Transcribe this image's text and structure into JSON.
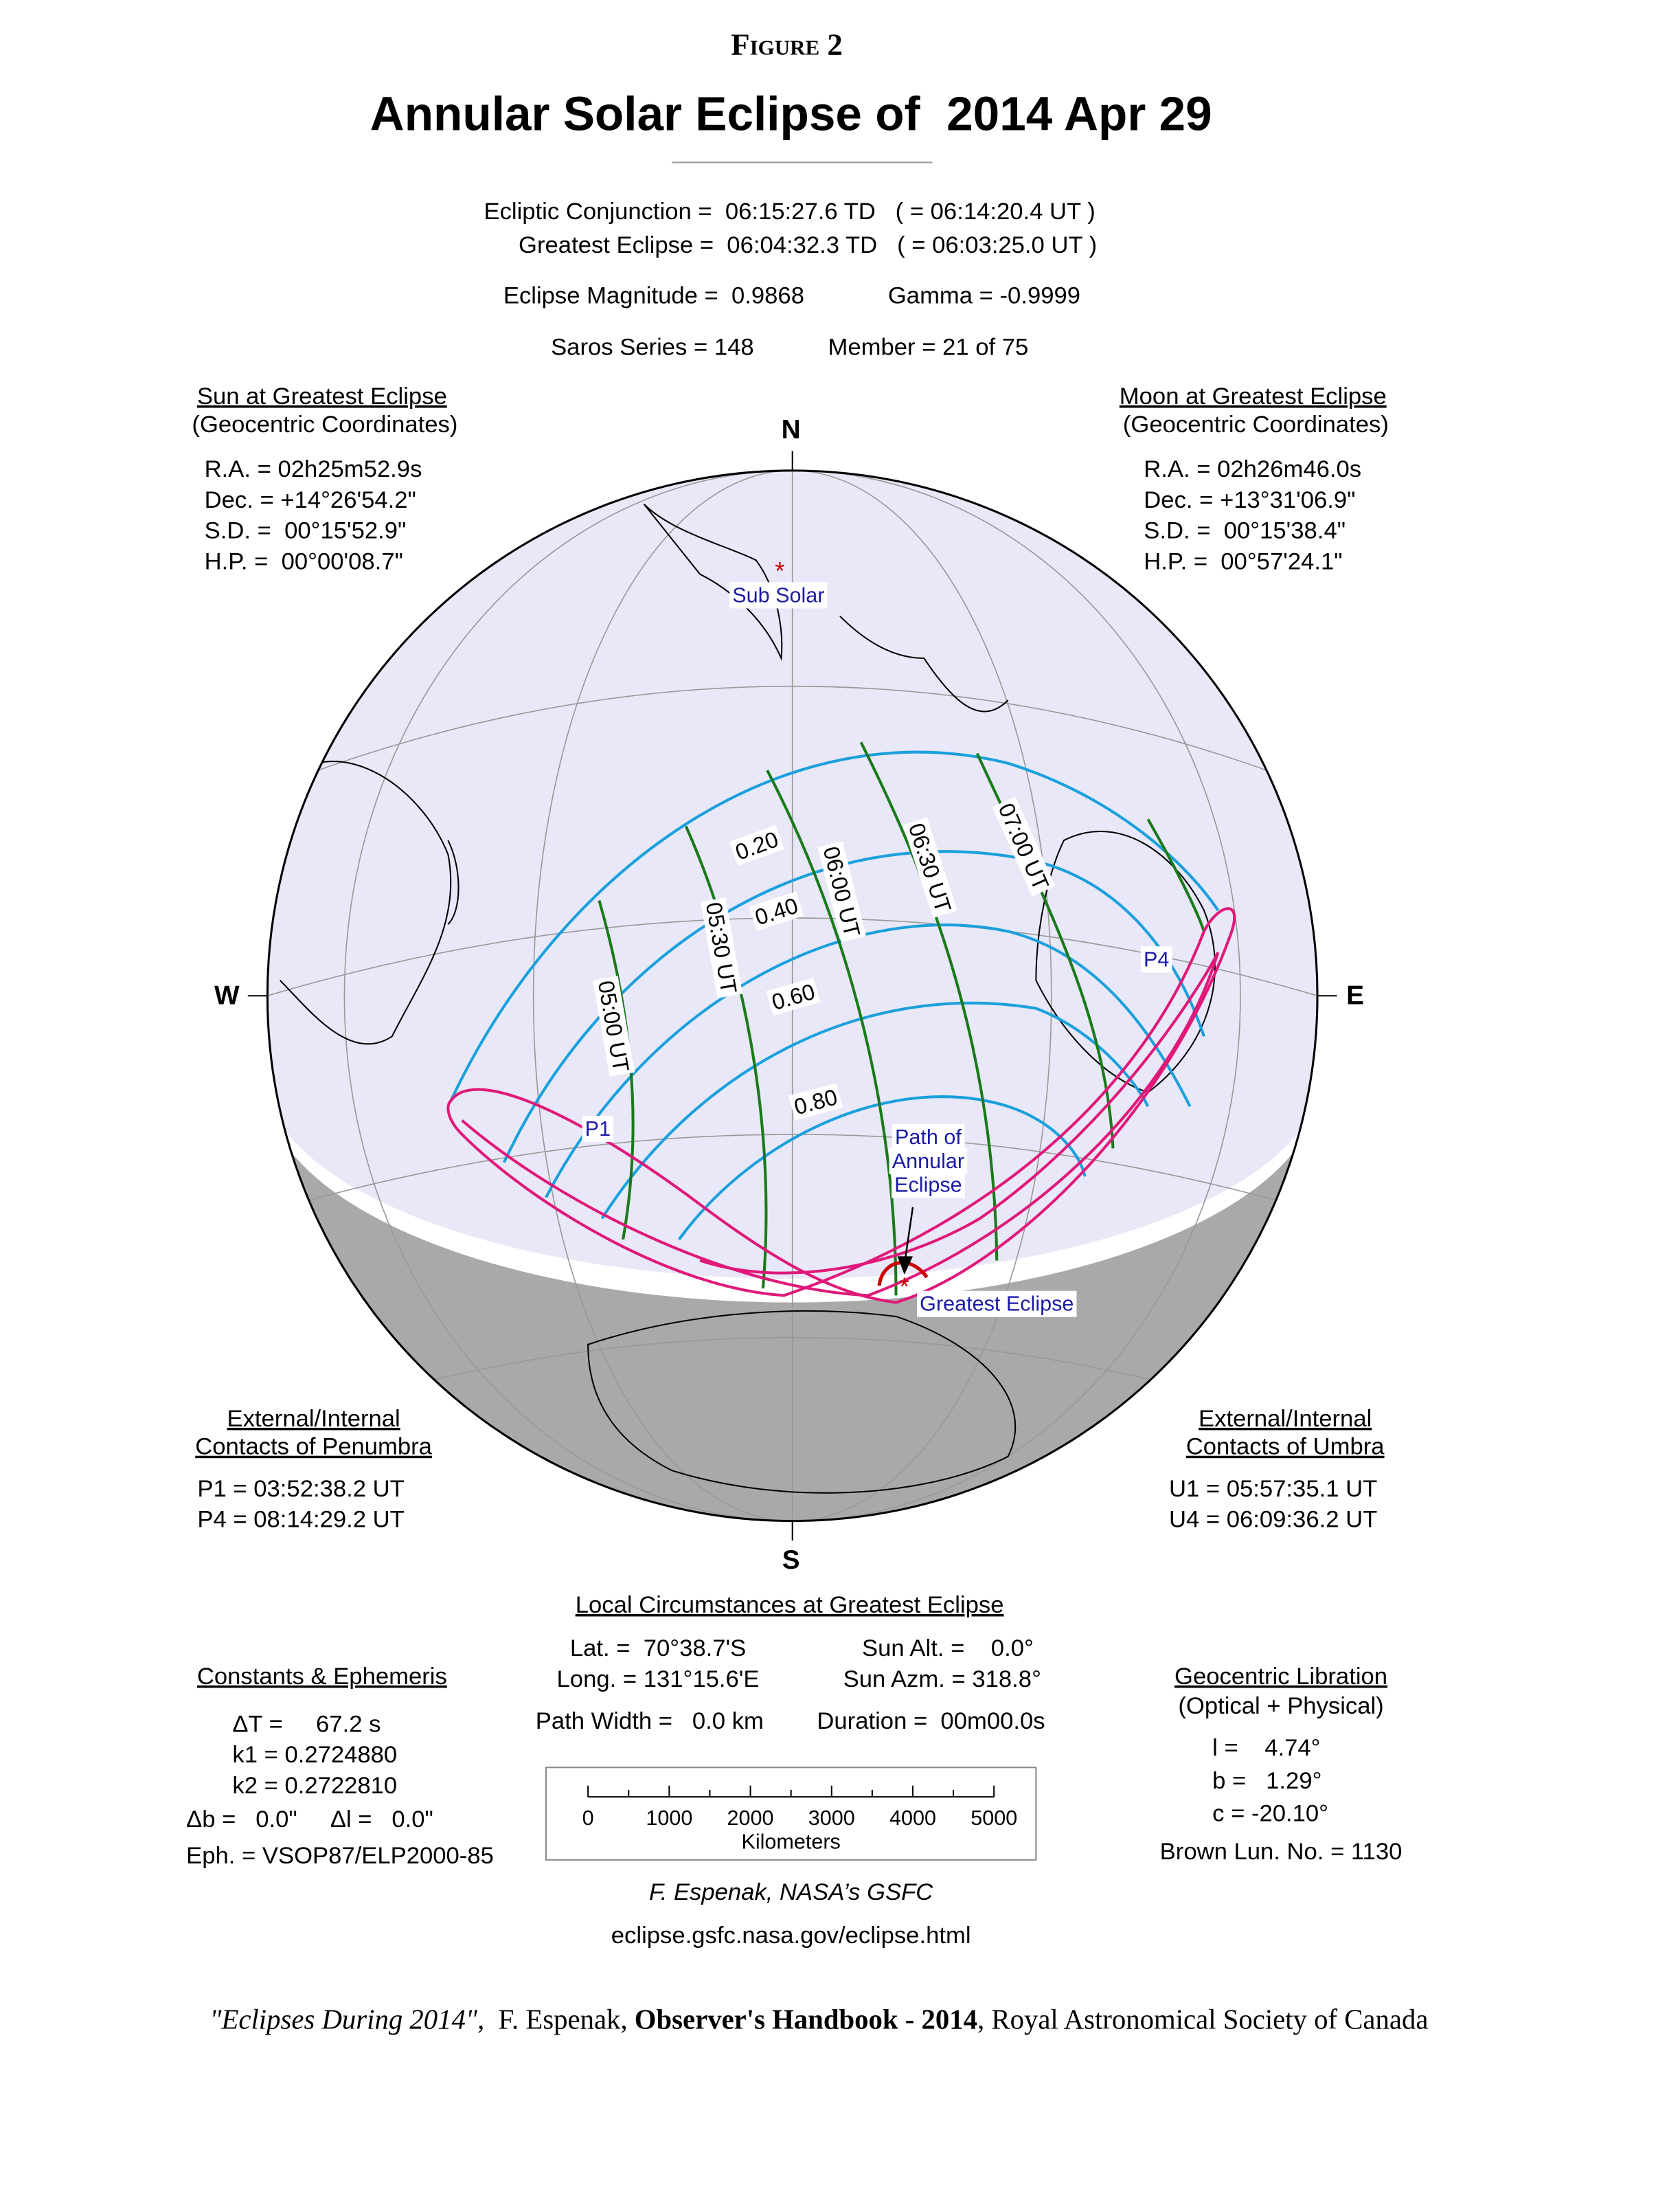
{
  "header": {
    "figure": "Figure 2",
    "title": "Annular Solar Eclipse of  2014 Apr 29"
  },
  "summary": [
    [
      "Ecliptic Conjunction =  06:15:27.6 TD   ( = 06:14:20.4 UT )"
    ],
    [
      "Greatest Eclipse =  06:04:32.3 TD   ( = 06:03:25.0 UT )"
    ],
    [
      "Eclipse Magnitude =  0.9868",
      "Gamma = -0.9999"
    ],
    [
      "Saros Series = 148",
      "Member = 21 of 75"
    ]
  ],
  "sun": {
    "title": "Sun at Greatest Eclipse",
    "subtitle": "(Geocentric Coordinates)",
    "lines": [
      "R.A. = 02h25m52.9s",
      "Dec. = +14°26'54.2\"",
      "S.D. =  00°15'52.9\"",
      "H.P. =  00°00'08.7\""
    ]
  },
  "moon": {
    "title": "Moon at Greatest Eclipse",
    "subtitle": "(Geocentric Coordinates)",
    "lines": [
      "R.A. = 02h26m46.0s",
      "Dec. = +13°31'06.9\"",
      "S.D. =  00°15'38.4\"",
      "H.P. =  00°57'24.1\""
    ]
  },
  "penumbra": {
    "title": [
      "External/Internal",
      "Contacts of Penumbra"
    ],
    "lines": [
      "P1 = 03:52:38.2 UT",
      "P4 = 08:14:29.2 UT"
    ]
  },
  "umbra": {
    "title": [
      "External/Internal",
      "Contacts of Umbra"
    ],
    "lines": [
      "U1 = 05:57:35.1 UT",
      "U4 = 06:09:36.2 UT"
    ]
  },
  "map": {
    "compass": {
      "north": "N",
      "south": "S",
      "west": "W",
      "east": "E"
    },
    "sub_solar": "Sub Solar",
    "greatest_eclipse": "Greatest Eclipse",
    "p1": "P1",
    "p4": "P4",
    "path_label": [
      "Path of",
      "Annular",
      "Eclipse"
    ],
    "times": [
      "05:00 UT",
      "05:30 UT",
      "06:00 UT",
      "06:30 UT",
      "07:00 UT"
    ],
    "magnitudes": [
      "0.20",
      "0.40",
      "0.60",
      "0.80"
    ]
  },
  "local": {
    "title": "Local Circumstances at Greatest Eclipse",
    "rows": [
      [
        "Lat. =  70°38.7'S",
        "Sun Alt. =    0.0°"
      ],
      [
        "Long. = 131°15.6'E",
        "Sun Azm. = 318.8°"
      ],
      [
        "Path Width =   0.0 km",
        "Duration =  00m00.0s"
      ]
    ]
  },
  "constants": {
    "title": "Constants & Ephemeris",
    "lines": [
      "ΔT =     67.2 s",
      "k1 = 0.2724880",
      "k2 = 0.2722810",
      "Δb =   0.0\"     Δl =   0.0\"",
      "Eph. = VSOP87/ELP2000-85"
    ]
  },
  "libration": {
    "title": "Geocentric Libration",
    "subtitle": "(Optical + Physical)",
    "lines": [
      "l =    4.74°",
      "b =   1.29°",
      "c = -20.10°"
    ],
    "brown": "Brown Lun. No. = 1130"
  },
  "scale": {
    "labels": [
      0,
      1000,
      2000,
      3000,
      4000,
      5000
    ],
    "unit": "Kilometers"
  },
  "credit": [
    "F. Espenak, NASA’s GSFC",
    "eclipse.gsfc.nasa.gov/eclipse.html"
  ],
  "footer": [
    "\"Eclipses During 2014\",",
    "  F. Espenak, ",
    "Observer's Handbook - 2014",
    ", Royal Astronomical Society of Canada"
  ]
}
